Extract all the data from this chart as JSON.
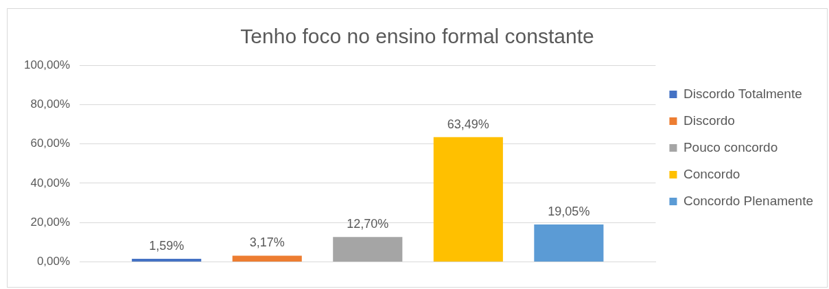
{
  "chart_data": {
    "type": "bar",
    "title": "Tenho foco no ensino formal constante",
    "categories": [
      null
    ],
    "series": [
      {
        "name": "Discordo Totalmente",
        "color": "#4472c4",
        "values": [
          1.59
        ],
        "value_labels": [
          "1,59%"
        ]
      },
      {
        "name": "Discordo",
        "color": "#ed7d31",
        "values": [
          3.17
        ],
        "value_labels": [
          "3,17%"
        ]
      },
      {
        "name": "Pouco concordo",
        "color": "#a5a5a5",
        "values": [
          12.7
        ],
        "value_labels": [
          "12,70%"
        ]
      },
      {
        "name": "Concordo",
        "color": "#ffc000",
        "values": [
          63.49
        ],
        "value_labels": [
          "63,49%"
        ]
      },
      {
        "name": "Concordo Plenamente",
        "color": "#5b9bd5",
        "values": [
          19.05
        ],
        "value_labels": [
          "19,05%"
        ]
      }
    ],
    "ylim": [
      0,
      100
    ],
    "yticks": [
      {
        "value": 0,
        "label": "0,00%"
      },
      {
        "value": 20,
        "label": "20,00%"
      },
      {
        "value": 40,
        "label": "40,00%"
      },
      {
        "value": 60,
        "label": "60,00%"
      },
      {
        "value": 80,
        "label": "80,00%"
      },
      {
        "value": 100,
        "label": "100,00%"
      }
    ],
    "grid": "y",
    "legend": "right"
  }
}
